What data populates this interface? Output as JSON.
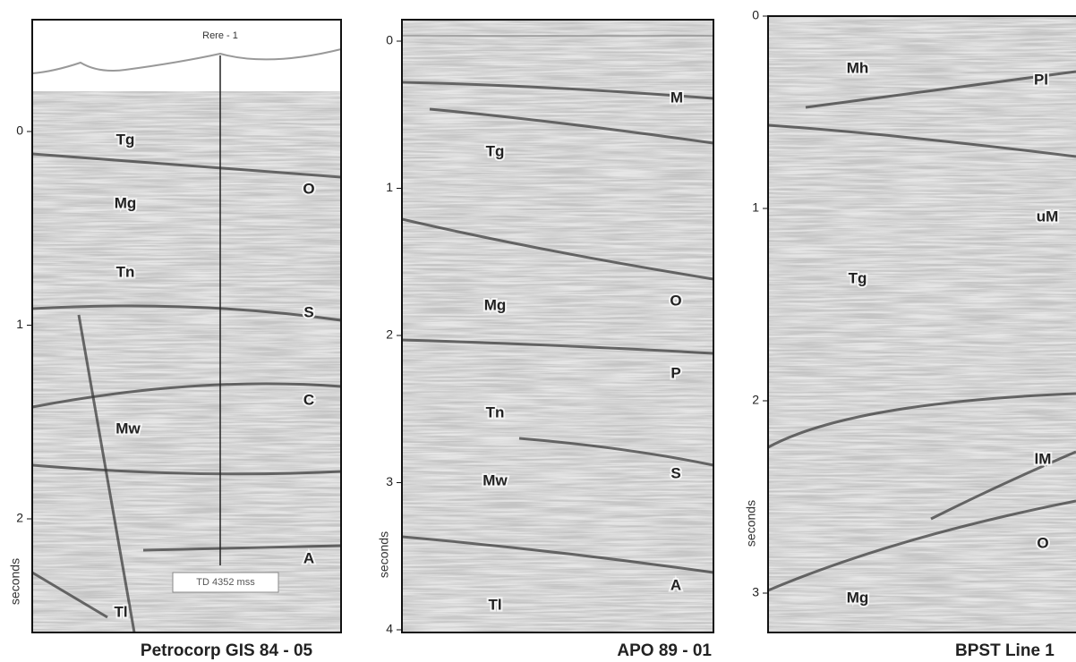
{
  "panels": [
    {
      "well": "Rere - 1",
      "td_label": "TD 4352 mss",
      "axis_label": "seconds",
      "ticks": [
        0,
        1,
        2
      ],
      "horizons": [
        "Tg",
        "Mg",
        "Tn",
        "O",
        "S",
        "C",
        "Mw",
        "A",
        "Tl"
      ],
      "caption": "Petrocorp GIS 84 - 05"
    },
    {
      "axis_label": "seconds",
      "ticks": [
        0,
        1,
        2,
        3,
        4
      ],
      "horizons": [
        "M",
        "Tg",
        "O",
        "Mg",
        "P",
        "Tn",
        "S",
        "Mw",
        "A",
        "Tl"
      ],
      "caption": "APO 89 - 01"
    },
    {
      "axis_label": "seconds",
      "ticks": [
        0,
        1,
        2,
        3
      ],
      "horizons": [
        "Mh",
        "Pl",
        "uM",
        "Tg",
        "lM",
        "O",
        "Mg"
      ],
      "caption": "BPST Line 1"
    }
  ]
}
